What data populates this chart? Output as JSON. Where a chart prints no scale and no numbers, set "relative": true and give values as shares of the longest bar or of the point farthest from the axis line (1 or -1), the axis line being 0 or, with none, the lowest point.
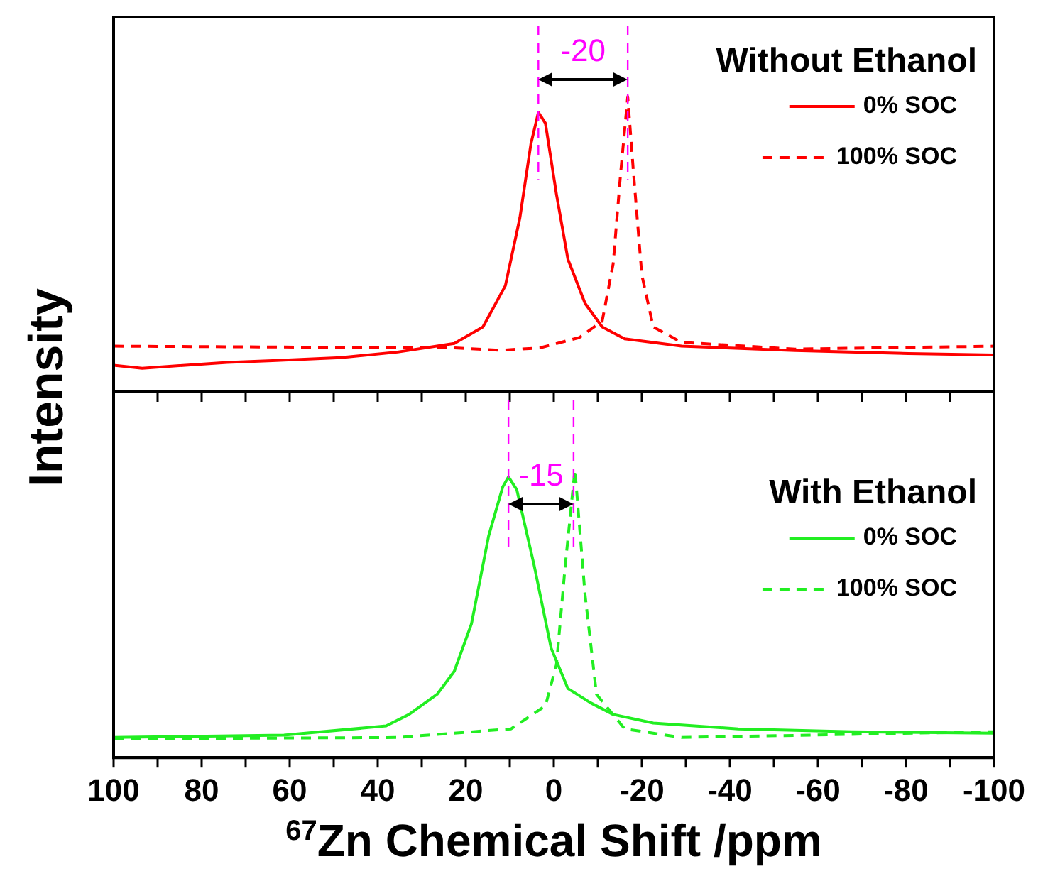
{
  "chart_data": [
    {
      "type": "line",
      "ylabel": "Intensity",
      "legend_title": "Without Ethanol",
      "relative": true,
      "legend": "top right",
      "marker": "none",
      "grid": false,
      "tick_labels": false,
      "xlim": [
        100,
        -100
      ],
      "xticks": [
        100,
        {
          "value": 90,
          "label": null
        },
        80,
        {
          "value": 70,
          "label": null
        },
        60,
        {
          "value": 50,
          "label": null
        },
        40,
        {
          "value": 30,
          "label": null
        },
        20,
        {
          "value": 10,
          "label": null
        },
        0,
        {
          "value": -10,
          "label": null
        },
        -20,
        {
          "value": -30,
          "label": null
        },
        -40,
        {
          "value": -50,
          "label": null
        },
        -60,
        {
          "value": -70,
          "label": null
        },
        -80,
        {
          "value": -90,
          "label": null
        },
        -100
      ],
      "series": [
        {
          "name": "0% SOC",
          "color": "#ff0000",
          "line_style": "solid",
          "x": [
            100,
            93.5,
            74.2,
            63.9,
            48.4,
            35.5,
            22.6,
            16.1,
            11,
            7.7,
            5.2,
            3.5,
            1.9,
            -0.6,
            -3.2,
            -7.1,
            -11,
            -16.1,
            -29,
            -54.8,
            -80.6,
            -100
          ],
          "values": [
            0.09,
            0.08,
            0.1,
            0.106,
            0.116,
            0.135,
            0.164,
            0.22,
            0.36,
            0.59,
            0.84,
            0.947,
            0.91,
            0.67,
            0.45,
            0.3,
            0.22,
            0.18,
            0.155,
            0.14,
            0.13,
            0.125
          ]
        },
        {
          "name": "100% SOC",
          "color": "#ff0000",
          "line_style": "dashed",
          "x": [
            100,
            22.6,
            12.3,
            3.2,
            -5.8,
            -11,
            -13.5,
            -15.2,
            -16.8,
            -18.1,
            -20,
            -22.6,
            -29,
            -54.8,
            -100
          ],
          "values": [
            0.155,
            0.149,
            0.141,
            0.149,
            0.184,
            0.24,
            0.435,
            0.744,
            1,
            0.744,
            0.396,
            0.22,
            0.168,
            0.145,
            0.155
          ]
        }
      ],
      "ref_lines": [
        {
          "axis": "x",
          "value": 3.5,
          "color": "#ff00ff",
          "line_style": "dashed"
        },
        {
          "axis": "x",
          "value": -16.8,
          "color": "#ff00ff",
          "line_style": "dashed"
        }
      ],
      "annotations": [
        "-20"
      ]
    },
    {
      "type": "line",
      "xlabel": "$^{67}$Zn Chemical Shift /ppm",
      "legend_title": "With Ethanol",
      "relative": true,
      "legend": "top right",
      "marker": "none",
      "grid": false,
      "tick_labels": "x",
      "xlim": [
        100,
        -100
      ],
      "xticks": [
        100,
        {
          "value": 90,
          "label": null
        },
        80,
        {
          "value": 70,
          "label": null
        },
        60,
        {
          "value": 50,
          "label": null
        },
        40,
        {
          "value": 30,
          "label": null
        },
        20,
        {
          "value": 10,
          "label": null
        },
        0,
        {
          "value": -10,
          "label": null
        },
        -20,
        {
          "value": -30,
          "label": null
        },
        -40,
        {
          "value": -50,
          "label": null
        },
        -60,
        {
          "value": -70,
          "label": null
        },
        -80,
        {
          "value": -90,
          "label": null
        },
        -100
      ],
      "series": [
        {
          "name": "0% SOC",
          "color": "#22ee22",
          "line_style": "solid",
          "x": [
            100,
            61.3,
            38.1,
            32.9,
            26.5,
            22.6,
            18.7,
            14.8,
            11.6,
            10.3,
            8.4,
            4.5,
            0.6,
            -3.2,
            -8.4,
            -13.5,
            -22.6,
            -41.9,
            -67.7,
            -100
          ],
          "values": [
            0.07,
            0.078,
            0.11,
            0.15,
            0.22,
            0.3,
            0.465,
            0.77,
            0.94,
            0.975,
            0.93,
            0.67,
            0.38,
            0.24,
            0.19,
            0.15,
            0.12,
            0.1,
            0.09,
            0.085
          ]
        },
        {
          "name": "100% SOC",
          "color": "#22ee22",
          "line_style": "dashed",
          "x": [
            100,
            35.5,
            9.7,
            1.9,
            -0.6,
            -2.6,
            -4.8,
            -7.1,
            -9.7,
            -16.1,
            -29,
            -100
          ],
          "values": [
            0.065,
            0.07,
            0.1,
            0.18,
            0.323,
            0.667,
            1,
            0.566,
            0.22,
            0.1,
            0.07,
            0.09
          ]
        }
      ],
      "ref_lines": [
        {
          "axis": "x",
          "value": 10.3,
          "color": "#ff00ff",
          "line_style": "dashed"
        },
        {
          "axis": "x",
          "value": -4.5,
          "color": "#ff00ff",
          "line_style": "dashed"
        }
      ],
      "annotations": [
        "-15"
      ]
    }
  ]
}
